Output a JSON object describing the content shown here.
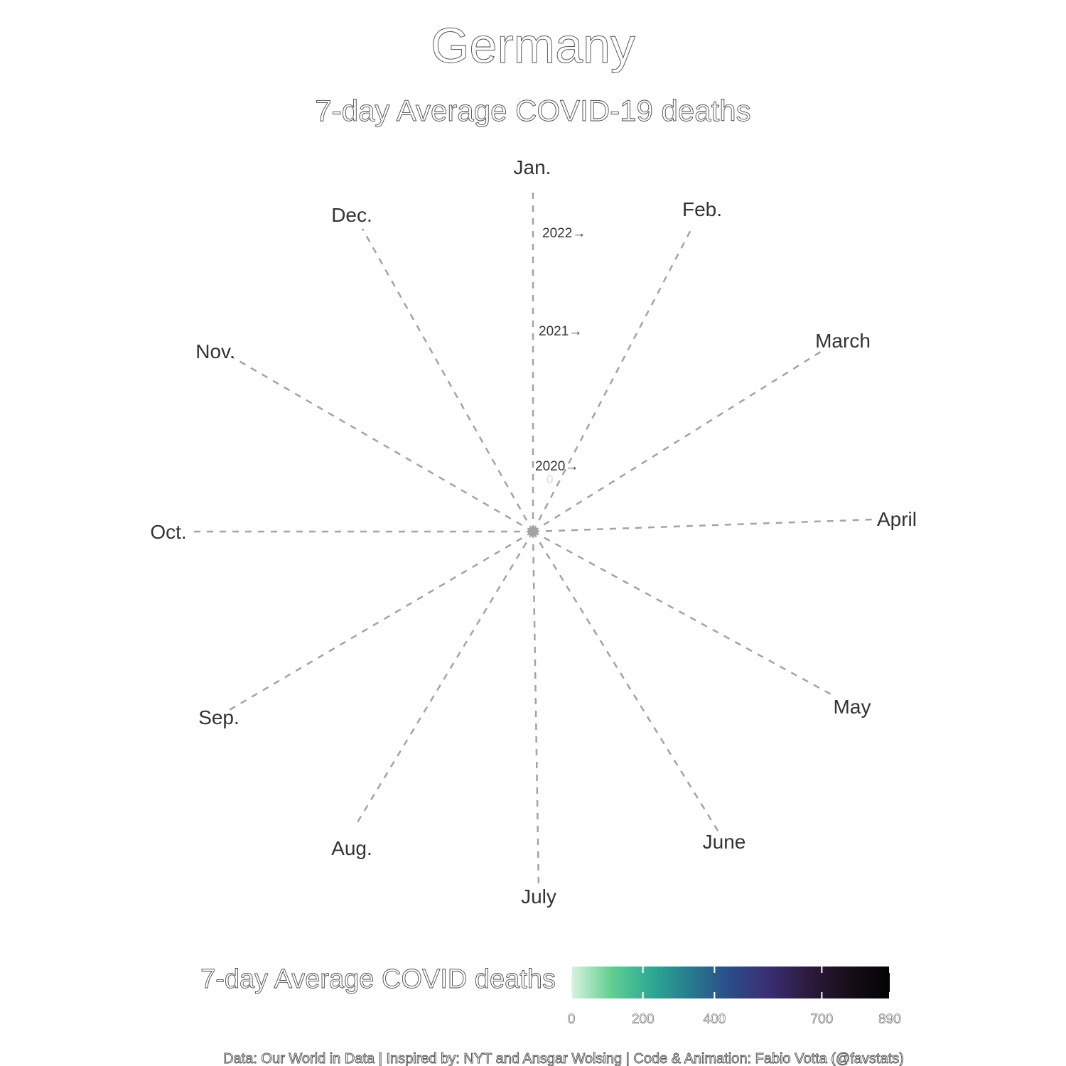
{
  "chart_data": {
    "type": "radial-spiral",
    "title": "Germany",
    "subtitle": "7-day Average COVID-19 deaths",
    "months": [
      "Jan.",
      "Feb.",
      "March",
      "April",
      "May",
      "June",
      "July",
      "Aug.",
      "Sep.",
      "Oct.",
      "Nov.",
      "Dec."
    ],
    "year_labels": [
      "2020→",
      "2021→",
      "2022→"
    ],
    "zero_label": "0",
    "legend": {
      "title": "7-day Average COVID deaths",
      "min": 0,
      "max": 890,
      "ticks": [
        {
          "label": "0",
          "value": 0
        },
        {
          "label": "200",
          "value": 200
        },
        {
          "label": "400",
          "value": 400
        },
        {
          "label": "700",
          "value": 700
        },
        {
          "label": "890",
          "value": 890
        }
      ],
      "colors": [
        "#daf2e0",
        "#62cf92",
        "#2ea993",
        "#267a8e",
        "#2b4b89",
        "#3a2d72",
        "#2b1a3c",
        "#160e19",
        "#050304"
      ],
      "position": "bottom"
    },
    "spoke_color": "#a3a3a3",
    "center_color": "#a3a3a3"
  },
  "caption": "Data: Our World in Data | Inspired by: NYT and Ansgar Wolsing | Code & Animation: Fabio Votta (@favstats)"
}
